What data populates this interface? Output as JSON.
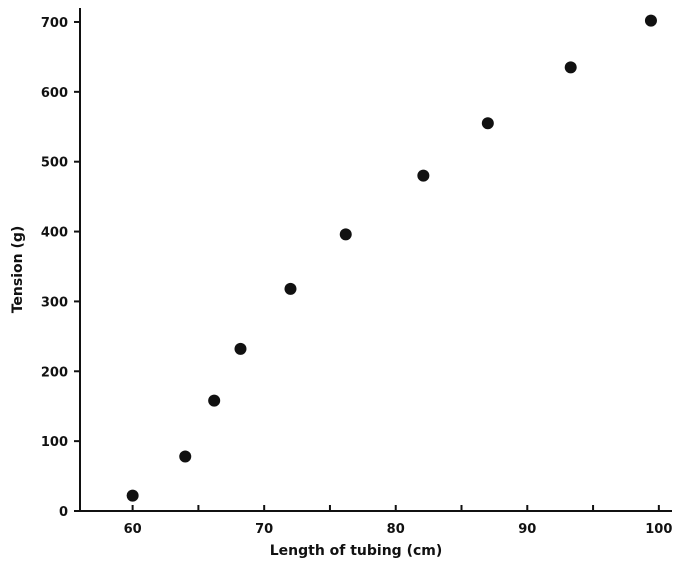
{
  "chart_data": {
    "type": "scatter",
    "title": "",
    "xlabel": "Length of tubing (cm)",
    "ylabel": "Tension (g)",
    "xlim": [
      56,
      101
    ],
    "ylim": [
      0,
      720
    ],
    "x_ticks": [
      60,
      70,
      80,
      90,
      100
    ],
    "x_minor_ticks": [
      65,
      75,
      85,
      95
    ],
    "y_ticks": [
      0,
      100,
      200,
      300,
      400,
      500,
      600,
      700
    ],
    "grid": false,
    "series": [
      {
        "x": [
          60,
          64,
          66.2,
          68.2,
          72,
          76.2,
          82.1,
          87,
          93.3,
          99.4
        ],
        "y": [
          22,
          78,
          158,
          232,
          318,
          396,
          480,
          555,
          635,
          702
        ]
      }
    ]
  }
}
